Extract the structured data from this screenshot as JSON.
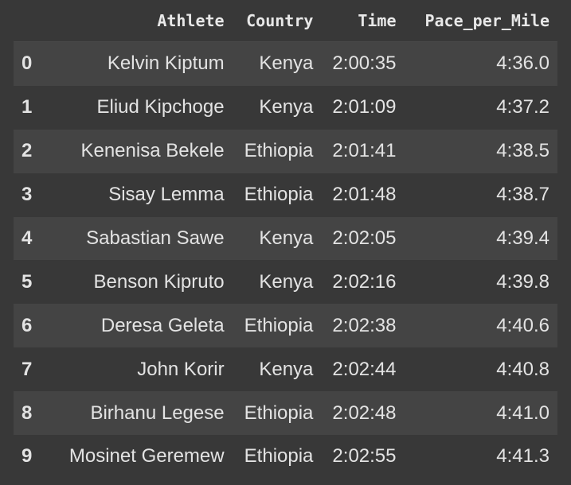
{
  "table": {
    "columns": [
      "Athlete",
      "Country",
      "Time",
      "Pace_per_Mile"
    ],
    "rows": [
      [
        0,
        "Kelvin Kiptum",
        "Kenya",
        "2:00:35",
        "4:36.0"
      ],
      [
        1,
        "Eliud Kipchoge",
        "Kenya",
        "2:01:09",
        "4:37.2"
      ],
      [
        2,
        "Kenenisa Bekele",
        "Ethiopia",
        "2:01:41",
        "4:38.5"
      ],
      [
        3,
        "Sisay Lemma",
        "Ethiopia",
        "2:01:48",
        "4:38.7"
      ],
      [
        4,
        "Sabastian Sawe",
        "Kenya",
        "2:02:05",
        "4:39.4"
      ],
      [
        5,
        "Benson Kipruto",
        "Kenya",
        "2:02:16",
        "4:39.8"
      ],
      [
        6,
        "Deresa Geleta",
        "Ethiopia",
        "2:02:38",
        "4:40.6"
      ],
      [
        7,
        "John Korir",
        "Kenya",
        "2:02:44",
        "4:40.8"
      ],
      [
        8,
        "Birhanu Legese",
        "Ethiopia",
        "2:02:48",
        "4:41.0"
      ],
      [
        9,
        "Mosinet Geremew",
        "Ethiopia",
        "2:02:55",
        "4:41.3"
      ]
    ]
  }
}
